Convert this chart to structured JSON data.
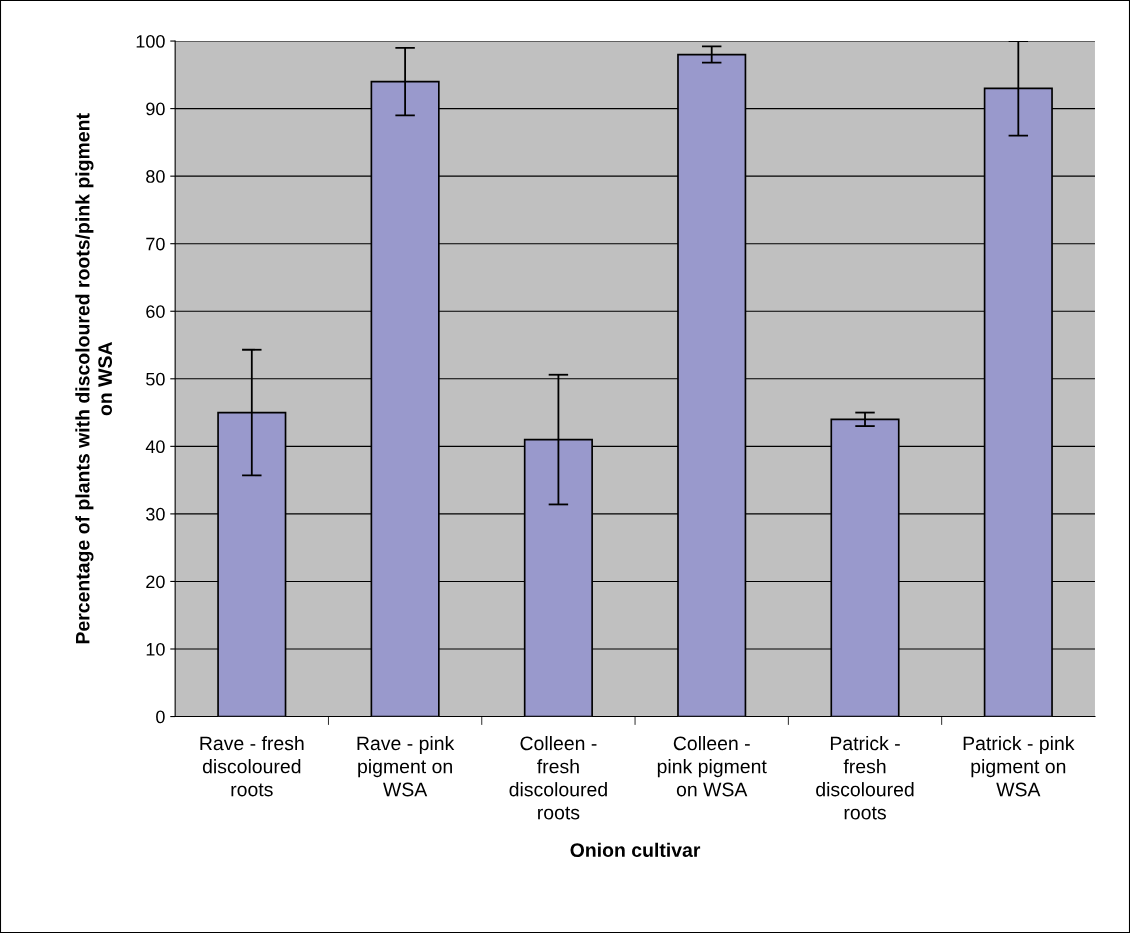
{
  "chart_data": {
    "type": "bar",
    "categories": [
      "Rave - fresh\ndiscoloured\nroots",
      "Rave - pink\npigment on\nWSA",
      "Colleen -\nfresh\ndiscoloured\nroots",
      "Colleen -\npink pigment\non WSA",
      "Patrick -\nfresh\ndiscoloured\nroots",
      "Patrick - pink\npigment on\nWSA"
    ],
    "values": [
      45,
      94,
      41,
      98,
      44,
      93
    ],
    "errors": [
      9.3,
      5,
      9.6,
      1.2,
      1,
      7
    ],
    "color": "#9999cc",
    "xlabel": "Onion cultivar",
    "ylabel": "Percentage of plants with discoloured roots/pink pigment\non WSA",
    "ylim": [
      0,
      100
    ],
    "yticks": [
      0,
      10,
      20,
      30,
      40,
      50,
      60,
      70,
      80,
      90,
      100
    ],
    "grid": "y"
  }
}
